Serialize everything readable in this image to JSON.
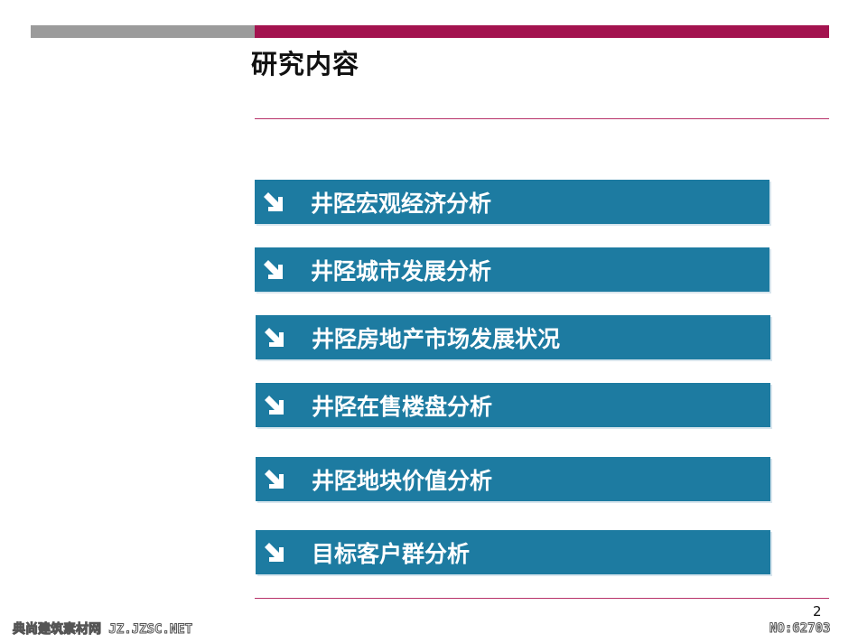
{
  "slide": {
    "title": "研究内容",
    "page_number": "2"
  },
  "items": [
    {
      "label": "井陉宏观经济分析",
      "icon": "arrow-down-right-icon"
    },
    {
      "label": "井陉城市发展分析",
      "icon": "arrow-down-right-icon"
    },
    {
      "label": "井陉房地产市场发展状况",
      "icon": "arrow-down-right-icon"
    },
    {
      "label": "井陉在售楼盘分析",
      "icon": "arrow-down-right-icon"
    },
    {
      "label": "井陉地块价值分析",
      "icon": "arrow-down-right-icon"
    },
    {
      "label": "目标客户群分析",
      "icon": "arrow-down-right-icon"
    }
  ],
  "watermark": {
    "left": "典尚建筑素材网 JZ.JZSC.NET",
    "right": "NO:62703"
  },
  "colors": {
    "item_bg": "#1d7ba1",
    "accent_bar": "#a3134f",
    "gray_bar": "#9b9b9b",
    "rule": "#b8336a"
  }
}
